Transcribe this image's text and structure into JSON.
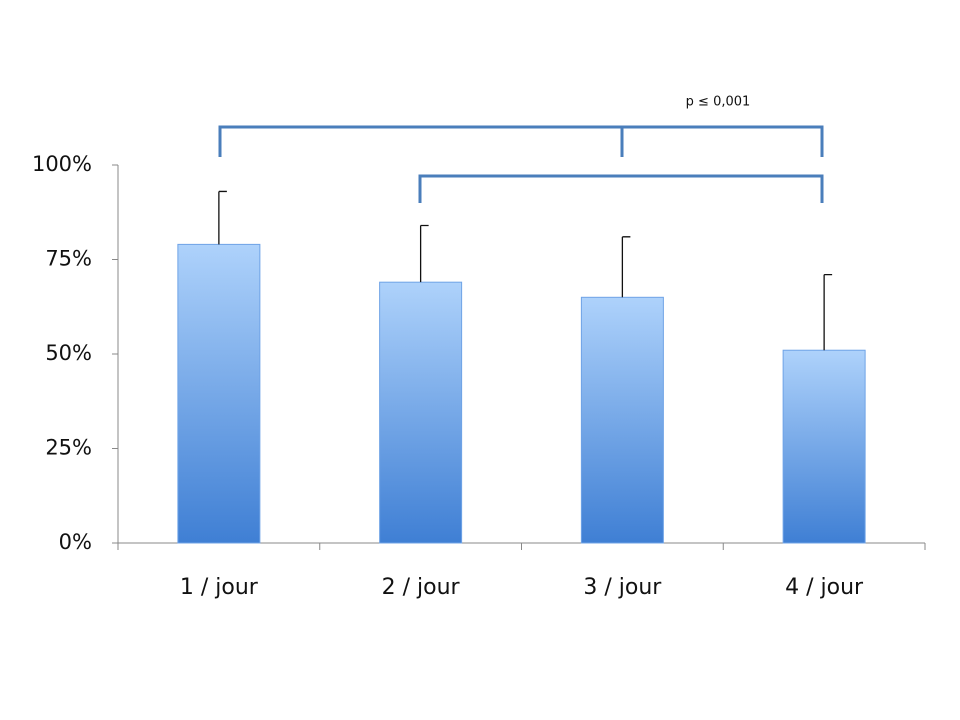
{
  "chart_data": {
    "type": "bar",
    "categories": [
      "1 / jour",
      "2 / jour",
      "3 / jour",
      "4 / jour"
    ],
    "values": [
      79,
      69,
      65,
      51
    ],
    "errors": [
      14,
      15,
      16,
      20
    ],
    "color": "#3f7fd4",
    "ylim": [
      0,
      100
    ],
    "yticks": [
      {
        "value": 0,
        "label": "0%"
      },
      {
        "value": 25,
        "label": "25%"
      },
      {
        "value": 50,
        "label": "50%"
      },
      {
        "value": 75,
        "label": "75%"
      },
      {
        "value": 100,
        "label": "100%"
      }
    ],
    "grid": false,
    "annotation": "p ≤ 0,001"
  }
}
